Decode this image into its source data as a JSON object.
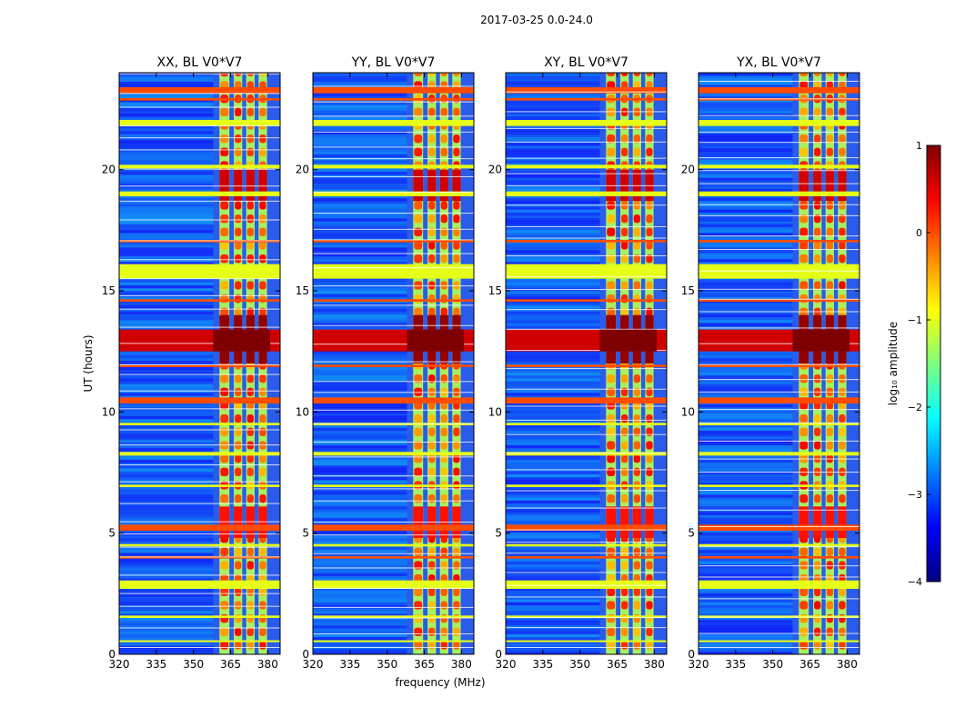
{
  "figure_title": "2017-03-25 0.0-24.0",
  "colors": {
    "jet": [
      "#00007f",
      "#0000ff",
      "#007fff",
      "#00ffff",
      "#7fff7f",
      "#ffff00",
      "#ff7f00",
      "#ff0000",
      "#7f0000"
    ],
    "rfi_background": "#2a5bea",
    "band_green": "#a8f060"
  },
  "chart_data": [
    {
      "type": "heatmap",
      "title": "XX, BL V0*V7",
      "xlabel": "",
      "ylabel": "UT (hours)",
      "xlim": [
        320,
        385
      ],
      "ylim": [
        0,
        24
      ],
      "xticks": [
        "320",
        "335",
        "350",
        "365",
        "380"
      ],
      "yticks": [
        "0",
        "5",
        "10",
        "15",
        "20"
      ]
    },
    {
      "type": "heatmap",
      "title": "YY, BL V0*V7",
      "xlabel": "frequency (MHz)",
      "ylabel": "",
      "xlim": [
        320,
        385
      ],
      "ylim": [
        0,
        24
      ],
      "xticks": [
        "320",
        "335",
        "350",
        "365",
        "380"
      ],
      "yticks": [
        "0",
        "5",
        "10",
        "15",
        "20"
      ]
    },
    {
      "type": "heatmap",
      "title": "XY, BL V0*V7",
      "xlabel": "",
      "ylabel": "",
      "xlim": [
        320,
        385
      ],
      "ylim": [
        0,
        24
      ],
      "xticks": [
        "320",
        "335",
        "350",
        "365",
        "380"
      ],
      "yticks": [
        "0",
        "5",
        "10",
        "15",
        "20"
      ]
    },
    {
      "type": "heatmap",
      "title": "YX, BL V0*V7",
      "xlabel": "",
      "ylabel": "",
      "xlim": [
        320,
        385
      ],
      "ylim": [
        0,
        24
      ],
      "xticks": [
        "320",
        "335",
        "350",
        "365",
        "380"
      ],
      "yticks": [
        "0",
        "5",
        "10",
        "15",
        "20"
      ]
    }
  ],
  "colorbar": {
    "label": "log₁₀ amplitude",
    "range": [
      -4,
      1
    ],
    "ticks": [
      "1",
      "0",
      "−1",
      "−2",
      "−3",
      "−4"
    ]
  },
  "features": {
    "band_columns_mhz": [
      [
        360.5,
        364.5
      ],
      [
        366.3,
        369.7
      ],
      [
        371.3,
        374.7
      ],
      [
        376.3,
        379.7
      ]
    ],
    "broadband_rows": [
      {
        "t0": 12.5,
        "t1": 13.4,
        "level": 0.6
      },
      {
        "t0": 15.5,
        "t1": 16.1,
        "level": -1.0
      },
      {
        "t0": 23.15,
        "t1": 23.4,
        "level": 0.0
      },
      {
        "t0": 10.35,
        "t1": 10.6,
        "level": 0.0
      },
      {
        "t0": 5.1,
        "t1": 5.35,
        "level": 0.0
      },
      {
        "t0": 11.85,
        "t1": 11.95,
        "level": 0.0
      },
      {
        "t0": 2.7,
        "t1": 3.05,
        "level": -1.0
      },
      {
        "t0": 21.8,
        "t1": 22.05,
        "level": -1.0
      },
      {
        "t0": 18.9,
        "t1": 19.1,
        "level": -1.0
      },
      {
        "t0": 17.0,
        "t1": 17.1,
        "level": 0.0
      },
      {
        "t0": 14.55,
        "t1": 14.65,
        "level": 0.0
      },
      {
        "t0": 20.05,
        "t1": 20.2,
        "level": -1.0
      },
      {
        "t0": 8.2,
        "t1": 8.35,
        "level": -1.0
      },
      {
        "t0": 6.9,
        "t1": 7.0,
        "level": -1.0
      },
      {
        "t0": 4.45,
        "t1": 4.55,
        "level": -1.0
      },
      {
        "t0": 3.95,
        "t1": 4.05,
        "level": 0.0
      },
      {
        "t0": 1.5,
        "t1": 1.6,
        "level": -1.0
      },
      {
        "t0": 0.5,
        "t1": 0.58,
        "level": -1.0
      },
      {
        "t0": 9.45,
        "t1": 9.55,
        "level": -1.0
      },
      {
        "t0": 22.85,
        "t1": 22.95,
        "level": 0.0
      }
    ],
    "hot_band_rows": [
      {
        "t0": 12.0,
        "t1": 14.0,
        "level": 0.9
      },
      {
        "t0": 18.7,
        "t1": 20.0,
        "level": 0.6
      },
      {
        "t0": 4.8,
        "t1": 6.1,
        "level": 0.3
      }
    ]
  }
}
